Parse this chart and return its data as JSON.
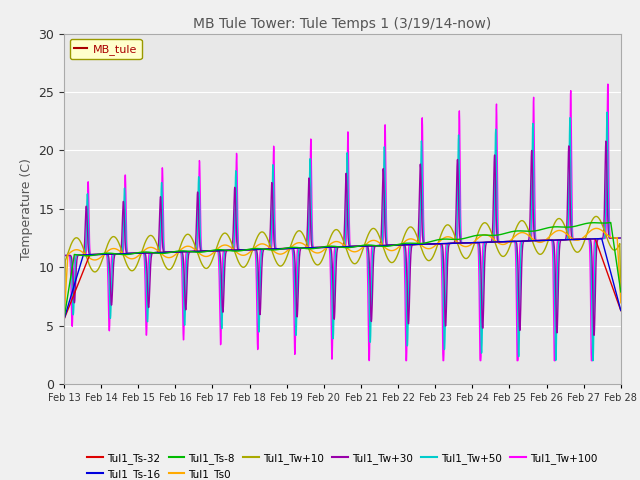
{
  "title": "MB Tule Tower: Tule Temps 1 (3/19/14-now)",
  "ylabel": "Temperature (C)",
  "ylim": [
    0,
    30
  ],
  "yticks": [
    0,
    5,
    10,
    15,
    20,
    25,
    30
  ],
  "xtick_labels": [
    "Feb 13",
    "Feb 14",
    "Feb 15",
    "Feb 16",
    "Feb 17",
    "Feb 18",
    "Feb 19",
    "Feb 20",
    "Feb 21",
    "Feb 22",
    "Feb 23",
    "Feb 24",
    "Feb 25",
    "Feb 26",
    "Feb 27",
    "Feb 28"
  ],
  "legend_label": "MB_tule",
  "series_labels": [
    "Tul1_Ts-32",
    "Tul1_Ts-16",
    "Tul1_Ts-8",
    "Tul1_Ts0",
    "Tul1_Tw+10",
    "Tul1_Tw+30",
    "Tul1_Tw+50",
    "Tul1_Tw+100"
  ],
  "series_colors": [
    "#dd0000",
    "#0000dd",
    "#00bb00",
    "#ffaa00",
    "#aaaa00",
    "#9900aa",
    "#00cccc",
    "#ff00ff"
  ],
  "bg_color": "#e8e8e8",
  "grid_color": "#ffffff",
  "title_color": "#555555",
  "axis_label_color": "#555555",
  "legend_bg": "#ffffcc",
  "legend_edge": "#999900",
  "legend_text_color": "#aa0000"
}
